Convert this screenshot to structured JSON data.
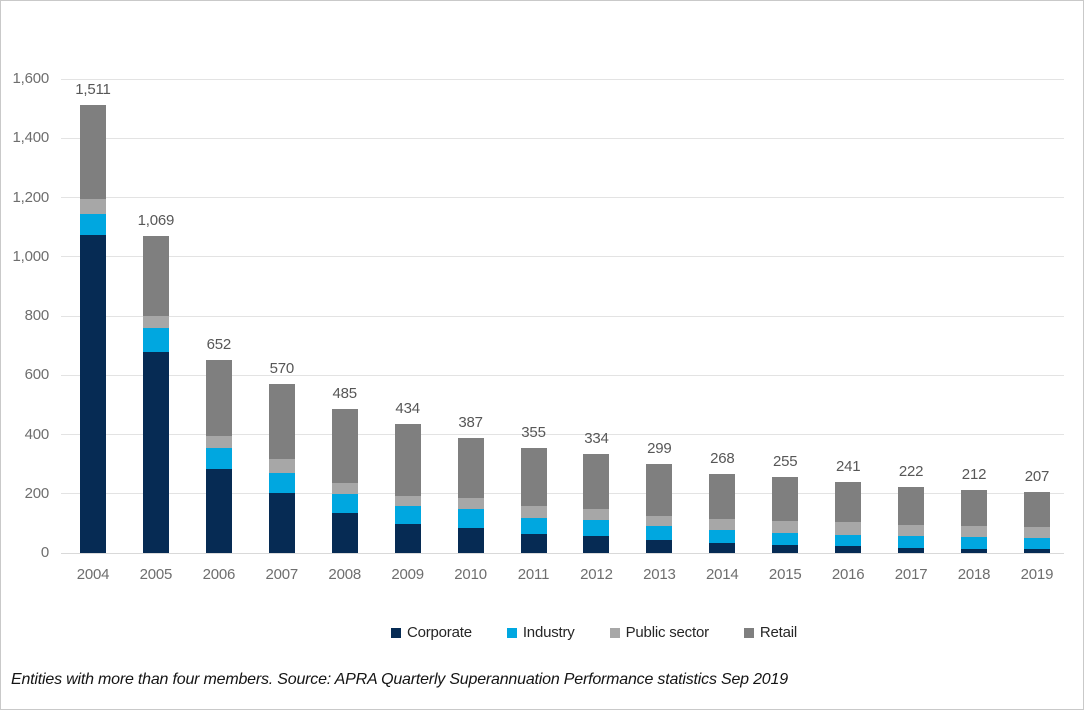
{
  "page": {
    "footnote": "Entities with more than four members. Source: APRA Quarterly Superannuation Performance statistics Sep 2019"
  },
  "colors": {
    "gridline": "#e3e3e3",
    "zero_line": "#d9d9d9",
    "axis_text": "#6e6e6e",
    "value_label": "#575757",
    "legend_text": "#262626",
    "page_border": "#c9c9c9"
  },
  "chart_data": {
    "type": "bar",
    "stacked": true,
    "title": "",
    "xlabel": "",
    "ylabel": "",
    "grid": true,
    "legend_position": "bottom",
    "categories": [
      "2004",
      "2005",
      "2006",
      "2007",
      "2008",
      "2009",
      "2010",
      "2011",
      "2012",
      "2013",
      "2014",
      "2015",
      "2016",
      "2017",
      "2018",
      "2019"
    ],
    "series": [
      {
        "name": "Corporate",
        "color": "#062b54",
        "values": [
          1075,
          680,
          282,
          203,
          135,
          97,
          85,
          64,
          59,
          45,
          34,
          28,
          23,
          17,
          15,
          15
        ]
      },
      {
        "name": "Industry",
        "color": "#00a7e0",
        "values": [
          70,
          78,
          71,
          68,
          63,
          61,
          62,
          54,
          51,
          45,
          45,
          40,
          39,
          42,
          38,
          36
        ]
      },
      {
        "name": "Public sector",
        "color": "#a7a7a7",
        "values": [
          50,
          42,
          42,
          45,
          39,
          34,
          37,
          40,
          40,
          36,
          37,
          39,
          42,
          34,
          37,
          36
        ]
      },
      {
        "name": "Retail",
        "color": "#7f7f7f",
        "values": [
          316,
          269,
          257,
          254,
          248,
          242,
          203,
          197,
          184,
          173,
          152,
          148,
          137,
          129,
          122,
          120
        ]
      }
    ],
    "totals": [
      1511,
      1069,
      652,
      570,
      485,
      434,
      387,
      355,
      334,
      299,
      268,
      255,
      241,
      222,
      212,
      207
    ],
    "total_labels": [
      "1,511",
      "1,069",
      "652",
      "570",
      "485",
      "434",
      "387",
      "355",
      "334",
      "299",
      "268",
      "255",
      "241",
      "222",
      "212",
      "207"
    ],
    "y_axis": {
      "min": 0,
      "max": 1600,
      "step": 200,
      "tick_labels": [
        "0",
        "200",
        "400",
        "600",
        "800",
        "1,000",
        "1,200",
        "1,400",
        "1,600"
      ]
    }
  }
}
